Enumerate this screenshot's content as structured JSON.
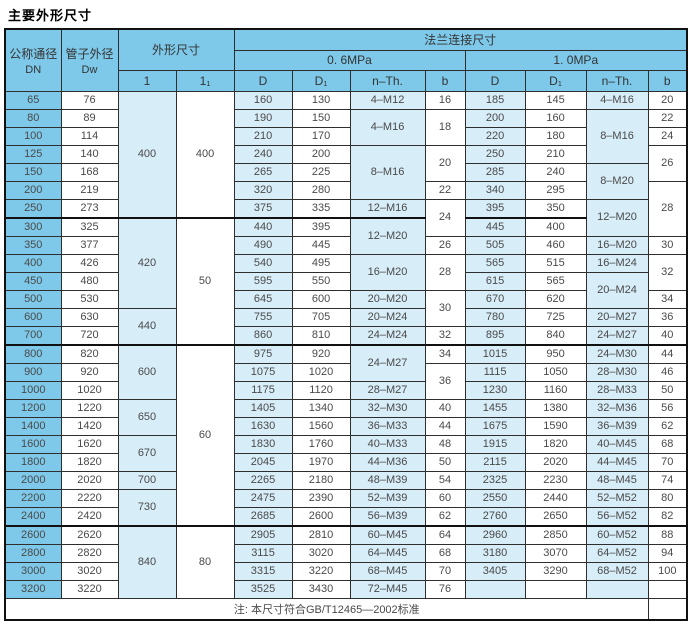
{
  "title": "主要外形尺寸",
  "colors": {
    "header_blue": "#7ec9e9",
    "light_blue": "#d7edf8",
    "row_white": "#ffffff",
    "border": "#2e2e2e",
    "outer_border": "#111111"
  },
  "table": {
    "header": {
      "dn_title": "公称通径",
      "dn_sub": "DN",
      "dw_title": "管子外径",
      "dw_sub": "Dw",
      "overall": "外形尺寸",
      "flange": "法兰连接尺寸",
      "p06": "0. 6MPa",
      "p10": "1. 0MPa",
      "l": "1",
      "l1": "1₁",
      "d": "D",
      "d1": "D₁",
      "nth": "n–Th.",
      "b": "b"
    },
    "note": "注: 本尺寸符合GB/T12465—2002标准",
    "rows": [
      [
        [
          "dn",
          "65"
        ],
        [
          "dw",
          "76"
        ],
        [
          "l",
          "400",
          7
        ],
        [
          "l1",
          "400",
          7
        ],
        [
          "d06",
          "160"
        ],
        [
          "d106",
          "130"
        ],
        [
          "n06",
          "4–M12"
        ],
        [
          "b06",
          "16"
        ],
        [
          "d10",
          "185"
        ],
        [
          "d110",
          "145"
        ],
        [
          "n10",
          "4–M16"
        ],
        [
          "b10",
          "20"
        ]
      ],
      [
        [
          "dn",
          "80"
        ],
        [
          "dw",
          "89"
        ],
        [
          "d06",
          "190"
        ],
        [
          "d106",
          "150"
        ],
        [
          "n06",
          "4–M16",
          2
        ],
        [
          "b06",
          "18",
          2
        ],
        [
          "d10",
          "200"
        ],
        [
          "d110",
          "160"
        ],
        [
          "n10",
          "8–M16",
          3
        ],
        [
          "b10",
          "22"
        ]
      ],
      [
        [
          "dn",
          "100"
        ],
        [
          "dw",
          "114"
        ],
        [
          "d06",
          "210"
        ],
        [
          "d106",
          "170"
        ],
        [
          "d10",
          "220"
        ],
        [
          "d110",
          "180"
        ],
        [
          "b10",
          "24"
        ]
      ],
      [
        [
          "dn",
          "125"
        ],
        [
          "dw",
          "140"
        ],
        [
          "d06",
          "240"
        ],
        [
          "d106",
          "200"
        ],
        [
          "n06",
          "8–M16",
          3
        ],
        [
          "b06",
          "20",
          2
        ],
        [
          "d10",
          "250"
        ],
        [
          "d110",
          "210"
        ],
        [
          "b10",
          "26",
          2
        ]
      ],
      [
        [
          "dn",
          "150"
        ],
        [
          "dw",
          "168"
        ],
        [
          "d06",
          "265"
        ],
        [
          "d106",
          "225"
        ],
        [
          "d10",
          "285"
        ],
        [
          "d110",
          "240"
        ],
        [
          "n10",
          "8–M20",
          2
        ]
      ],
      [
        [
          "dn",
          "200"
        ],
        [
          "dw",
          "219"
        ],
        [
          "d06",
          "320"
        ],
        [
          "d106",
          "280"
        ],
        [
          "b06",
          "22"
        ],
        [
          "d10",
          "340"
        ],
        [
          "d110",
          "295"
        ],
        [
          "b10",
          "28",
          3
        ]
      ],
      [
        [
          "dn",
          "250"
        ],
        [
          "dw",
          "273"
        ],
        [
          "d06",
          "375"
        ],
        [
          "d106",
          "335"
        ],
        [
          "n06",
          "12–M16"
        ],
        [
          "b06",
          "24",
          2
        ],
        [
          "d10",
          "395"
        ],
        [
          "d110",
          "350"
        ],
        [
          "n10",
          "12–M20",
          2
        ]
      ],
      [
        [
          "dn",
          "300"
        ],
        [
          "dw",
          "325"
        ],
        [
          "l",
          "420",
          5
        ],
        [
          "l1",
          "50",
          7
        ],
        [
          "d06",
          "440"
        ],
        [
          "d106",
          "395"
        ],
        [
          "n06",
          "12–M20",
          2
        ],
        [
          "d10",
          "445"
        ],
        [
          "d110",
          "400"
        ]
      ],
      [
        [
          "dn",
          "350"
        ],
        [
          "dw",
          "377"
        ],
        [
          "d06",
          "490"
        ],
        [
          "d106",
          "445"
        ],
        [
          "b06",
          "26"
        ],
        [
          "d10",
          "505"
        ],
        [
          "d110",
          "460"
        ],
        [
          "n10",
          "16–M20"
        ],
        [
          "b10",
          "30"
        ]
      ],
      [
        [
          "dn",
          "400"
        ],
        [
          "dw",
          "426"
        ],
        [
          "d06",
          "540"
        ],
        [
          "d106",
          "495"
        ],
        [
          "n06",
          "16–M20",
          2
        ],
        [
          "b06",
          "28",
          2
        ],
        [
          "d10",
          "565"
        ],
        [
          "d110",
          "515"
        ],
        [
          "n10",
          "16–M24"
        ],
        [
          "b10",
          "32",
          2
        ]
      ],
      [
        [
          "dn",
          "450"
        ],
        [
          "dw",
          "480"
        ],
        [
          "d06",
          "595"
        ],
        [
          "d106",
          "550"
        ],
        [
          "d10",
          "615"
        ],
        [
          "d110",
          "565"
        ],
        [
          "n10",
          "20–M24",
          2
        ]
      ],
      [
        [
          "dn",
          "500"
        ],
        [
          "dw",
          "530"
        ],
        [
          "d06",
          "645"
        ],
        [
          "d106",
          "600"
        ],
        [
          "n06",
          "20–M20"
        ],
        [
          "b06",
          "30",
          2
        ],
        [
          "d10",
          "670"
        ],
        [
          "d110",
          "620"
        ],
        [
          "b10",
          "34"
        ]
      ],
      [
        [
          "dn",
          "600"
        ],
        [
          "dw",
          "630"
        ],
        [
          "l",
          "440",
          2
        ],
        [
          "d06",
          "755"
        ],
        [
          "d106",
          "705"
        ],
        [
          "n06",
          "20–M24"
        ],
        [
          "d10",
          "780"
        ],
        [
          "d110",
          "725"
        ],
        [
          "n10",
          "20–M27"
        ],
        [
          "b10",
          "36"
        ]
      ],
      [
        [
          "dn",
          "700"
        ],
        [
          "dw",
          "720"
        ],
        [
          "d06",
          "860"
        ],
        [
          "d106",
          "810"
        ],
        [
          "n06",
          "24–M24"
        ],
        [
          "b06",
          "32"
        ],
        [
          "d10",
          "895"
        ],
        [
          "d110",
          "840"
        ],
        [
          "n10",
          "24–M27"
        ],
        [
          "b10",
          "40"
        ]
      ],
      [
        [
          "dn",
          "800"
        ],
        [
          "dw",
          "820"
        ],
        [
          "l",
          "600",
          3
        ],
        [
          "l1",
          "60",
          10
        ],
        [
          "d06",
          "975"
        ],
        [
          "d106",
          "920"
        ],
        [
          "n06",
          "24–M27",
          2
        ],
        [
          "b06",
          "34"
        ],
        [
          "d10",
          "1015"
        ],
        [
          "d110",
          "950"
        ],
        [
          "n10",
          "24–M30"
        ],
        [
          "b10",
          "44"
        ]
      ],
      [
        [
          "dn",
          "900"
        ],
        [
          "dw",
          "920"
        ],
        [
          "d06",
          "1075"
        ],
        [
          "d106",
          "1020"
        ],
        [
          "b06",
          "36",
          2
        ],
        [
          "d10",
          "1115"
        ],
        [
          "d110",
          "1050"
        ],
        [
          "n10",
          "28–M30"
        ],
        [
          "b10",
          "46"
        ]
      ],
      [
        [
          "dn",
          "1000"
        ],
        [
          "dw",
          "1020"
        ],
        [
          "d06",
          "1175"
        ],
        [
          "d106",
          "1120"
        ],
        [
          "n06",
          "28–M27"
        ],
        [
          "d10",
          "1230"
        ],
        [
          "d110",
          "1160"
        ],
        [
          "n10",
          "28–M33"
        ],
        [
          "b10",
          "50"
        ]
      ],
      [
        [
          "dn",
          "1200"
        ],
        [
          "dw",
          "1220"
        ],
        [
          "l",
          "650",
          2
        ],
        [
          "d06",
          "1405"
        ],
        [
          "d106",
          "1340"
        ],
        [
          "n06",
          "32–M30"
        ],
        [
          "b06",
          "40"
        ],
        [
          "d10",
          "1455"
        ],
        [
          "d110",
          "1380"
        ],
        [
          "n10",
          "32–M36"
        ],
        [
          "b10",
          "56"
        ]
      ],
      [
        [
          "dn",
          "1400"
        ],
        [
          "dw",
          "1420"
        ],
        [
          "d06",
          "1630"
        ],
        [
          "d106",
          "1560"
        ],
        [
          "n06",
          "36–M33"
        ],
        [
          "b06",
          "44"
        ],
        [
          "d10",
          "1675"
        ],
        [
          "d110",
          "1590"
        ],
        [
          "n10",
          "36–M39"
        ],
        [
          "b10",
          "62"
        ]
      ],
      [
        [
          "dn",
          "1600"
        ],
        [
          "dw",
          "1620"
        ],
        [
          "l",
          "670",
          2
        ],
        [
          "d06",
          "1830"
        ],
        [
          "d106",
          "1760"
        ],
        [
          "n06",
          "40–M33"
        ],
        [
          "b06",
          "48"
        ],
        [
          "d10",
          "1915"
        ],
        [
          "d110",
          "1820"
        ],
        [
          "n10",
          "40–M45"
        ],
        [
          "b10",
          "68"
        ]
      ],
      [
        [
          "dn",
          "1800"
        ],
        [
          "dw",
          "1820"
        ],
        [
          "d06",
          "2045"
        ],
        [
          "d106",
          "1970"
        ],
        [
          "n06",
          "44–M36"
        ],
        [
          "b06",
          "50"
        ],
        [
          "d10",
          "2115"
        ],
        [
          "d110",
          "2020"
        ],
        [
          "n10",
          "44–M45"
        ],
        [
          "b10",
          "70"
        ]
      ],
      [
        [
          "dn",
          "2000"
        ],
        [
          "dw",
          "2020"
        ],
        [
          "l",
          "700"
        ],
        [
          "d06",
          "2265"
        ],
        [
          "d106",
          "2180"
        ],
        [
          "n06",
          "48–M39"
        ],
        [
          "b06",
          "54"
        ],
        [
          "d10",
          "2325"
        ],
        [
          "d110",
          "2230"
        ],
        [
          "n10",
          "48–M45"
        ],
        [
          "b10",
          "74"
        ]
      ],
      [
        [
          "dn",
          "2200"
        ],
        [
          "dw",
          "2220"
        ],
        [
          "l",
          "730",
          2
        ],
        [
          "d06",
          "2475"
        ],
        [
          "d106",
          "2390"
        ],
        [
          "n06",
          "52–M39"
        ],
        [
          "b06",
          "60"
        ],
        [
          "d10",
          "2550"
        ],
        [
          "d110",
          "2440"
        ],
        [
          "n10",
          "52–M52"
        ],
        [
          "b10",
          "80"
        ]
      ],
      [
        [
          "dn",
          "2400"
        ],
        [
          "dw",
          "2420"
        ],
        [
          "d06",
          "2685"
        ],
        [
          "d106",
          "2600"
        ],
        [
          "n06",
          "56–M39"
        ],
        [
          "b06",
          "62"
        ],
        [
          "d10",
          "2760"
        ],
        [
          "d110",
          "2650"
        ],
        [
          "n10",
          "56–M52"
        ],
        [
          "b10",
          "82"
        ]
      ],
      [
        [
          "dn",
          "2600"
        ],
        [
          "dw",
          "2620"
        ],
        [
          "l",
          "840",
          4
        ],
        [
          "l1",
          "80",
          4
        ],
        [
          "d06",
          "2905"
        ],
        [
          "d106",
          "2810"
        ],
        [
          "n06",
          "60–M45"
        ],
        [
          "b06",
          "64"
        ],
        [
          "d10",
          "2960"
        ],
        [
          "d110",
          "2850"
        ],
        [
          "n10",
          "60–M52"
        ],
        [
          "b10",
          "88"
        ]
      ],
      [
        [
          "dn",
          "2800"
        ],
        [
          "dw",
          "2820"
        ],
        [
          "d06",
          "3115"
        ],
        [
          "d106",
          "3020"
        ],
        [
          "n06",
          "64–M45"
        ],
        [
          "b06",
          "68"
        ],
        [
          "d10",
          "3180"
        ],
        [
          "d110",
          "3070"
        ],
        [
          "n10",
          "64–M52"
        ],
        [
          "b10",
          "94"
        ]
      ],
      [
        [
          "dn",
          "3000"
        ],
        [
          "dw",
          "3020"
        ],
        [
          "d06",
          "3315"
        ],
        [
          "d106",
          "3220"
        ],
        [
          "n06",
          "68–M45"
        ],
        [
          "b06",
          "70"
        ],
        [
          "d10",
          "3405"
        ],
        [
          "d110",
          "3290"
        ],
        [
          "n10",
          "68–M52"
        ],
        [
          "b10",
          "100"
        ]
      ],
      [
        [
          "dn",
          "3200"
        ],
        [
          "dw",
          "3220"
        ],
        [
          "d06",
          "3525"
        ],
        [
          "d106",
          "3430"
        ],
        [
          "n06",
          "72–M45"
        ],
        [
          "b06",
          "76"
        ],
        [
          "d10",
          ""
        ],
        [
          "d110",
          ""
        ],
        [
          "n10",
          ""
        ],
        [
          "b10",
          ""
        ]
      ]
    ]
  }
}
